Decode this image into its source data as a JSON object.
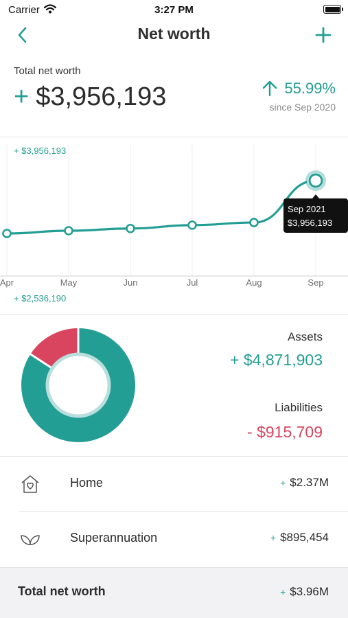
{
  "status_bar": {
    "carrier": "Carrier",
    "time": "3:27 PM"
  },
  "nav": {
    "title": "Net worth",
    "back_icon": "chevron-left-icon",
    "add_icon": "plus-icon"
  },
  "summary": {
    "label": "Total net worth",
    "sign": "+",
    "amount": "$3,956,193",
    "change": "55.99%",
    "change_icon": "arrow-up-icon",
    "since": "since Sep 2020"
  },
  "chart": {
    "max_label": "+ $3,956,193",
    "min_label": "+ $2,536,190",
    "tooltip": {
      "period": "Sep 2021",
      "amount": "$3,956,193"
    },
    "accent_color": "#239e94"
  },
  "chart_data": {
    "type": "line",
    "categories": [
      "Apr",
      "May",
      "Jun",
      "Jul",
      "Aug",
      "Sep"
    ],
    "values": [
      2536190,
      2610000,
      2670000,
      2760000,
      2830000,
      3956193
    ],
    "ylim": [
      2536190,
      3956193
    ]
  },
  "breakdown": {
    "assets_label": "Assets",
    "assets_value": "+ $4,871,903",
    "liabilities_label": "Liabilities",
    "liabilities_value": "- $915,709",
    "assets_color": "#239e94",
    "liabilities_color": "#d9455f"
  },
  "rows": [
    {
      "icon": "house-heart-icon",
      "label": "Home",
      "sign": "+",
      "value": "$2.37M"
    },
    {
      "icon": "leaf-sprout-icon",
      "label": "Superannuation",
      "sign": "+",
      "value": "$895,454"
    }
  ],
  "total": {
    "label": "Total net worth",
    "sign": "+",
    "value": "$3.96M"
  }
}
